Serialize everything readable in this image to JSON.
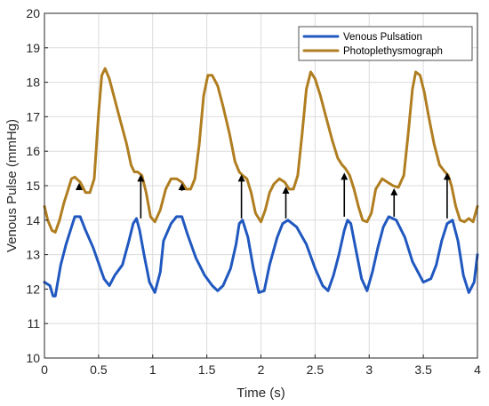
{
  "chart_data": {
    "type": "line",
    "xlabel": "Time (s)",
    "ylabel": "Venous Pulse (mmHg)",
    "xlim": [
      0,
      4
    ],
    "ylim": [
      10,
      20
    ],
    "x_ticks": [
      0,
      0.5,
      1,
      1.5,
      2,
      2.5,
      3,
      3.5,
      4
    ],
    "x_tick_labels": [
      "0",
      "0.5",
      "1",
      "1.5",
      "2",
      "2.5",
      "3",
      "3.5",
      "4"
    ],
    "y_ticks": [
      10,
      11,
      12,
      13,
      14,
      15,
      16,
      17,
      18,
      19,
      20
    ],
    "y_tick_labels": [
      "10",
      "11",
      "12",
      "13",
      "14",
      "15",
      "16",
      "17",
      "18",
      "19",
      "20"
    ],
    "grid": true,
    "legend_position": "top-right",
    "series": [
      {
        "name": "Venous Pulsation",
        "color": "#2058c0",
        "x": [
          0,
          0.05,
          0.08,
          0.1,
          0.15,
          0.2,
          0.25,
          0.28,
          0.33,
          0.38,
          0.45,
          0.55,
          0.6,
          0.65,
          0.72,
          0.78,
          0.82,
          0.85,
          0.88,
          0.92,
          0.97,
          1.02,
          1.07,
          1.1,
          1.17,
          1.22,
          1.27,
          1.32,
          1.4,
          1.48,
          1.55,
          1.6,
          1.65,
          1.72,
          1.77,
          1.8,
          1.83,
          1.88,
          1.93,
          1.98,
          2.03,
          2.08,
          2.15,
          2.2,
          2.25,
          2.33,
          2.42,
          2.5,
          2.57,
          2.62,
          2.67,
          2.72,
          2.77,
          2.8,
          2.83,
          2.88,
          2.93,
          2.98,
          3.03,
          3.08,
          3.13,
          3.18,
          3.25,
          3.33,
          3.4,
          3.45,
          3.5,
          3.57,
          3.62,
          3.67,
          3.72,
          3.77,
          3.82,
          3.87,
          3.92,
          3.97,
          4.0
        ],
        "y": [
          12.2,
          12.1,
          11.8,
          11.8,
          12.7,
          13.3,
          13.8,
          14.1,
          14.1,
          13.7,
          13.2,
          12.3,
          12.1,
          12.4,
          12.7,
          13.4,
          13.9,
          14.05,
          13.7,
          13.0,
          12.2,
          11.9,
          12.5,
          13.4,
          13.9,
          14.1,
          14.1,
          13.6,
          12.9,
          12.4,
          12.1,
          11.95,
          12.1,
          12.6,
          13.3,
          13.9,
          14.0,
          13.5,
          12.6,
          11.9,
          11.95,
          12.7,
          13.5,
          13.9,
          14.0,
          13.8,
          13.3,
          12.6,
          12.1,
          11.95,
          12.4,
          13.0,
          13.7,
          14.0,
          13.9,
          13.1,
          12.3,
          11.95,
          12.5,
          13.2,
          13.8,
          14.1,
          14.0,
          13.5,
          12.8,
          12.5,
          12.2,
          12.3,
          12.7,
          13.4,
          13.9,
          14.0,
          13.4,
          12.4,
          11.9,
          12.2,
          13.0
        ]
      },
      {
        "name": "Photoplethysmograph",
        "color": "#b07e20",
        "x": [
          0,
          0.03,
          0.07,
          0.1,
          0.14,
          0.18,
          0.22,
          0.25,
          0.28,
          0.33,
          0.38,
          0.42,
          0.46,
          0.5,
          0.53,
          0.56,
          0.6,
          0.65,
          0.7,
          0.76,
          0.8,
          0.83,
          0.86,
          0.9,
          0.94,
          0.98,
          1.02,
          1.07,
          1.12,
          1.17,
          1.22,
          1.27,
          1.31,
          1.35,
          1.39,
          1.43,
          1.47,
          1.51,
          1.55,
          1.6,
          1.65,
          1.71,
          1.76,
          1.8,
          1.83,
          1.87,
          1.91,
          1.95,
          2.0,
          2.04,
          2.08,
          2.12,
          2.17,
          2.22,
          2.26,
          2.3,
          2.34,
          2.38,
          2.42,
          2.46,
          2.5,
          2.55,
          2.6,
          2.66,
          2.71,
          2.75,
          2.78,
          2.82,
          2.86,
          2.9,
          2.94,
          2.98,
          3.02,
          3.06,
          3.12,
          3.17,
          3.22,
          3.27,
          3.32,
          3.36,
          3.4,
          3.43,
          3.47,
          3.51,
          3.55,
          3.6,
          3.65,
          3.7,
          3.73,
          3.76,
          3.8,
          3.84,
          3.88,
          3.92,
          3.96,
          4.0
        ],
        "y": [
          14.4,
          14.0,
          13.7,
          13.65,
          14.0,
          14.5,
          14.9,
          15.2,
          15.25,
          15.1,
          14.8,
          14.8,
          15.2,
          17.1,
          18.2,
          18.4,
          18.1,
          17.5,
          16.9,
          16.2,
          15.6,
          15.4,
          15.4,
          15.3,
          14.8,
          14.1,
          13.95,
          14.3,
          14.9,
          15.2,
          15.2,
          15.1,
          14.9,
          14.9,
          15.2,
          16.2,
          17.6,
          18.2,
          18.2,
          17.9,
          17.3,
          16.5,
          15.7,
          15.4,
          15.3,
          15.2,
          14.8,
          14.2,
          13.95,
          14.3,
          14.8,
          15.05,
          15.2,
          15.1,
          14.9,
          14.9,
          15.3,
          16.5,
          17.8,
          18.3,
          18.1,
          17.6,
          17.0,
          16.3,
          15.8,
          15.6,
          15.5,
          15.3,
          14.9,
          14.4,
          14.0,
          13.95,
          14.2,
          14.9,
          15.2,
          15.1,
          15.0,
          14.95,
          15.3,
          16.5,
          17.8,
          18.3,
          18.2,
          17.7,
          17.0,
          16.2,
          15.6,
          15.4,
          15.3,
          15.0,
          14.4,
          14.0,
          13.95,
          14.05,
          13.95,
          14.4
        ]
      }
    ],
    "arrows": [
      {
        "x": 0.32,
        "y_from": 14.9,
        "y_to": 15.05
      },
      {
        "x": 0.89,
        "y_from": 14.05,
        "y_to": 15.3
      },
      {
        "x": 1.27,
        "y_from": 14.85,
        "y_to": 15.05
      },
      {
        "x": 1.82,
        "y_from": 14.05,
        "y_to": 15.3
      },
      {
        "x": 2.23,
        "y_from": 14.05,
        "y_to": 14.95
      },
      {
        "x": 2.77,
        "y_from": 14.1,
        "y_to": 15.35
      },
      {
        "x": 3.23,
        "y_from": 14.1,
        "y_to": 14.9
      },
      {
        "x": 3.72,
        "y_from": 14.05,
        "y_to": 15.35
      }
    ]
  }
}
